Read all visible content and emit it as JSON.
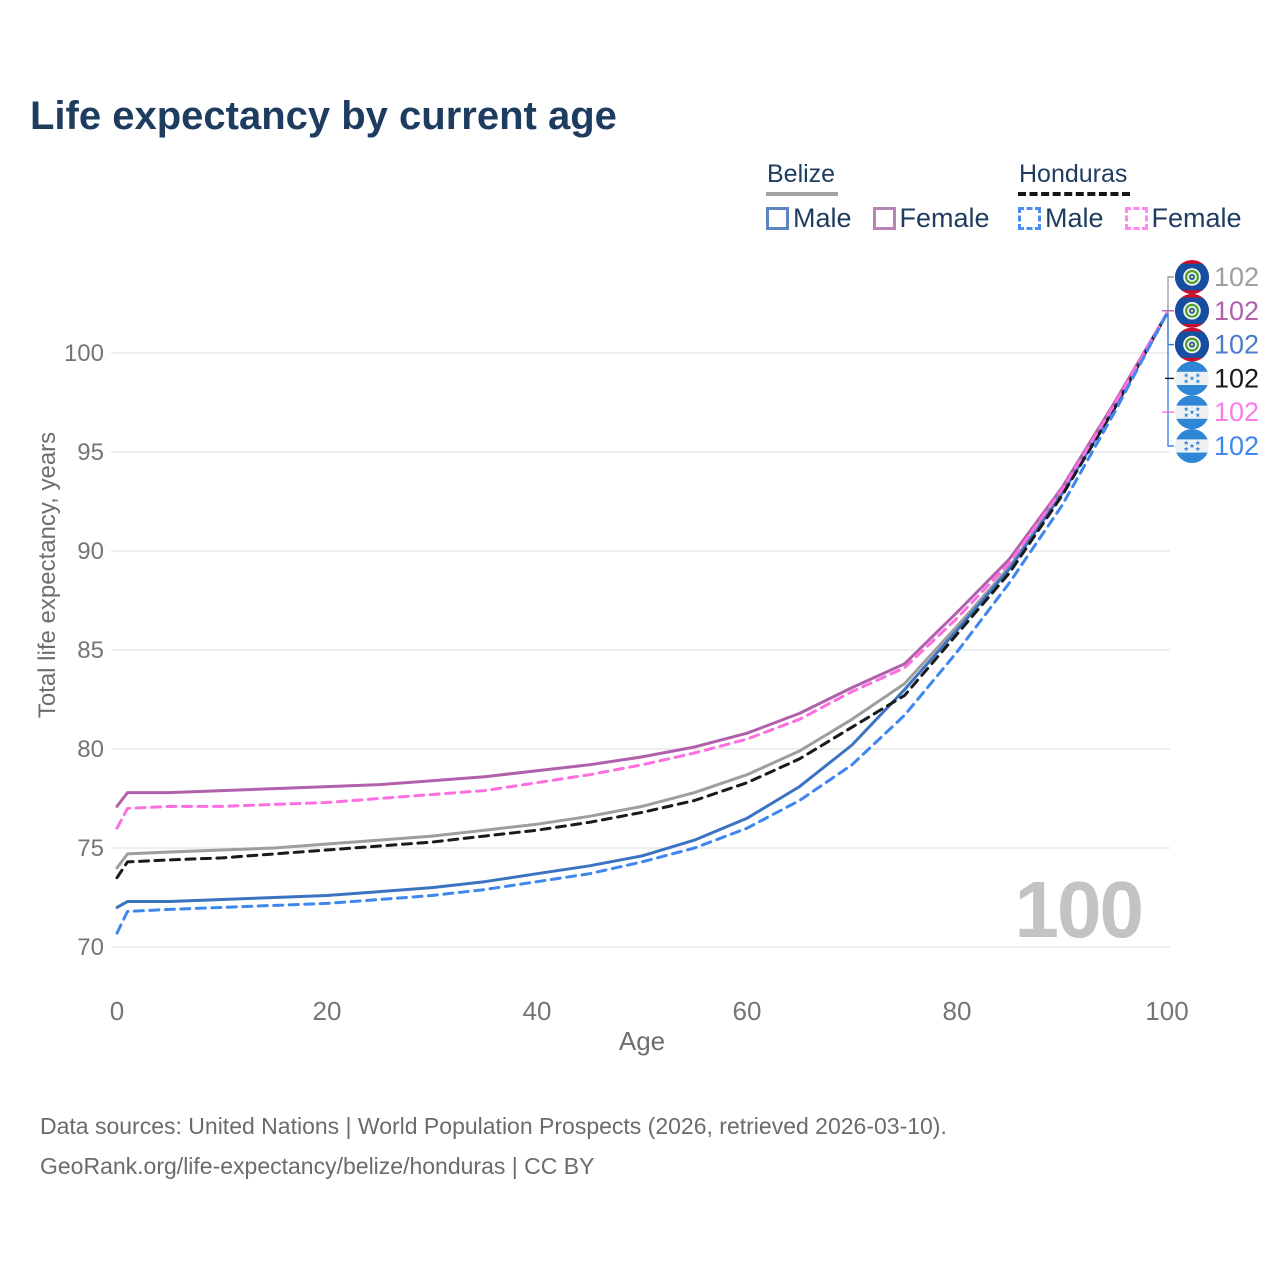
{
  "title": "Life expectancy by current age",
  "watermark": "100",
  "legend": {
    "groups": [
      {
        "label": "Belize",
        "line_style": "solid",
        "underline_color": "#a3a3a3",
        "items": [
          {
            "label": "Male",
            "color": "#5e86bd",
            "style": "solid"
          },
          {
            "label": "Female",
            "color": "#b884b6",
            "style": "solid"
          }
        ]
      },
      {
        "label": "Honduras",
        "line_style": "dashed",
        "underline_color": "#161616",
        "items": [
          {
            "label": "Male",
            "color": "#4d8df0",
            "style": "dashed"
          },
          {
            "label": "Female",
            "color": "#fd8aec",
            "style": "dashed"
          }
        ]
      }
    ]
  },
  "chart_data": {
    "type": "line",
    "title": "Life expectancy by current age",
    "xlabel": "Age",
    "ylabel": "Total life expectancy, years",
    "xlim": [
      0,
      100
    ],
    "ylim": [
      70,
      102
    ],
    "xticks": [
      0,
      20,
      40,
      60,
      80,
      100
    ],
    "yticks": [
      70,
      75,
      80,
      85,
      90,
      95,
      100
    ],
    "grid": "horizontal",
    "legend_position": "top-right",
    "x": [
      0,
      1,
      5,
      10,
      15,
      20,
      25,
      30,
      35,
      40,
      45,
      50,
      55,
      60,
      65,
      70,
      75,
      80,
      85,
      90,
      95,
      100
    ],
    "series": [
      {
        "name": "Belize",
        "flag": "belize",
        "style": "solid",
        "color": "#9e9e9e",
        "end_label": "102",
        "end_label_color": "#9e9e9e",
        "values": [
          74.0,
          74.7,
          74.8,
          74.9,
          75.0,
          75.2,
          75.4,
          75.6,
          75.9,
          76.2,
          76.6,
          77.1,
          77.8,
          78.7,
          79.9,
          81.5,
          83.3,
          86.2,
          89.2,
          93.0,
          97.3,
          102
        ]
      },
      {
        "name": "Belize Female",
        "flag": "belize",
        "style": "solid",
        "color": "#b161ab",
        "end_label": "102",
        "end_label_color": "#b161ab",
        "values": [
          77.1,
          77.8,
          77.8,
          77.9,
          78.0,
          78.1,
          78.2,
          78.4,
          78.6,
          78.9,
          79.2,
          79.6,
          80.1,
          80.8,
          81.8,
          83.1,
          84.3,
          86.9,
          89.6,
          93.2,
          97.5,
          102
        ]
      },
      {
        "name": "Belize Male",
        "flag": "belize",
        "style": "solid",
        "color": "#3b73c3",
        "end_label": "102",
        "end_label_color": "#4a7cc9",
        "values": [
          72.0,
          72.3,
          72.3,
          72.4,
          72.5,
          72.6,
          72.8,
          73.0,
          73.3,
          73.7,
          74.1,
          74.6,
          75.4,
          76.5,
          78.1,
          80.2,
          83.0,
          86.0,
          89.1,
          92.9,
          97.2,
          102
        ]
      },
      {
        "name": "Honduras",
        "flag": "honduras",
        "style": "dashed",
        "color": "#1a1a1a",
        "end_label": "102",
        "end_label_color": "#1a1a1a",
        "values": [
          73.5,
          74.3,
          74.4,
          74.5,
          74.7,
          74.9,
          75.1,
          75.3,
          75.6,
          75.9,
          76.3,
          76.8,
          77.4,
          78.3,
          79.5,
          81.1,
          82.7,
          85.8,
          88.9,
          92.8,
          97.2,
          102
        ]
      },
      {
        "name": "Honduras Female",
        "flag": "honduras",
        "style": "dashed",
        "color": "#fb6fe0",
        "end_label": "102",
        "end_label_color": "#fb7be9",
        "values": [
          76.0,
          77.0,
          77.1,
          77.1,
          77.2,
          77.3,
          77.5,
          77.7,
          77.9,
          78.3,
          78.7,
          79.2,
          79.8,
          80.5,
          81.5,
          82.9,
          84.1,
          86.6,
          89.4,
          93.1,
          97.4,
          102
        ]
      },
      {
        "name": "Honduras Male",
        "flag": "honduras",
        "style": "dashed",
        "color": "#3f86ef",
        "end_label": "102",
        "end_label_color": "#3f86ef",
        "values": [
          70.7,
          71.8,
          71.9,
          72.0,
          72.1,
          72.2,
          72.4,
          72.6,
          72.9,
          73.3,
          73.7,
          74.3,
          75.0,
          76.0,
          77.4,
          79.2,
          81.7,
          84.9,
          88.4,
          92.3,
          97.0,
          102
        ]
      }
    ]
  },
  "footer": {
    "lines": [
      "Data sources: United Nations | World Population Prospects (2026, retrieved 2026-03-10).",
      "GeoRank.org/life-expectancy/belize/honduras | CC BY"
    ]
  }
}
